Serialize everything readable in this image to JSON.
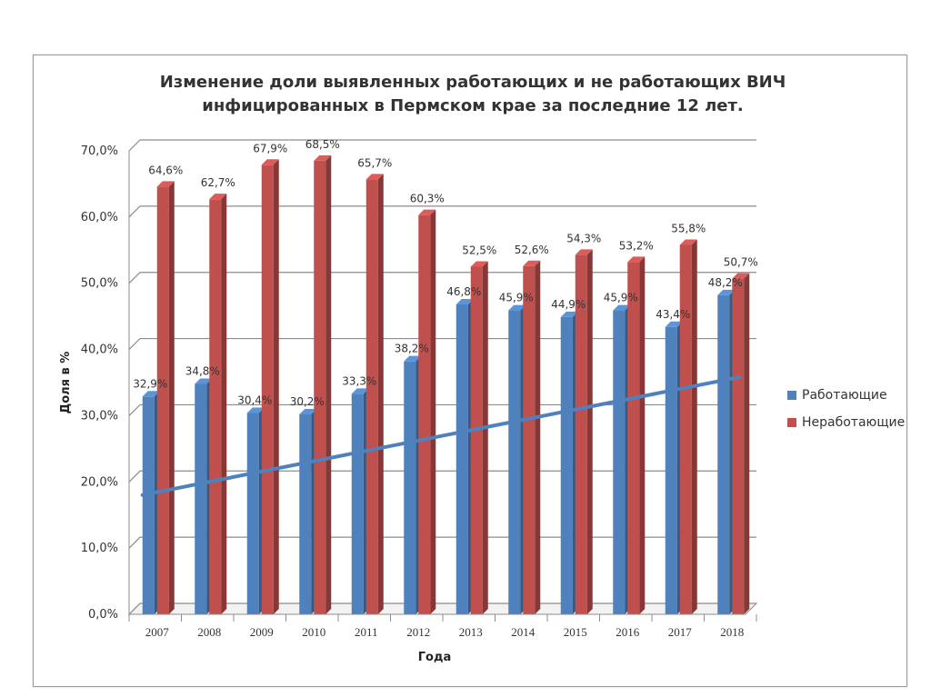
{
  "chart_data": {
    "type": "bar",
    "title": "Изменение доли выявленных работающих и не работающих ВИЧ инфицированных в Пермском крае за последние 12 лет.",
    "xlabel": "Года",
    "ylabel": "Доля в %",
    "categories": [
      "2007",
      "2008",
      "2009",
      "2010",
      "2011",
      "2012",
      "2013",
      "2014",
      "2015",
      "2016",
      "2017",
      "2018"
    ],
    "y_ticks": [
      "0,0%",
      "10,0%",
      "20,0%",
      "30,0%",
      "40,0%",
      "50,0%",
      "60,0%",
      "70,0%"
    ],
    "ylim": [
      0,
      70
    ],
    "grid": true,
    "legend_position": "right",
    "series": [
      {
        "name": "Работающие",
        "color": "#4f81bd",
        "values": [
          32.9,
          34.8,
          30.4,
          30.2,
          33.3,
          38.2,
          46.8,
          45.9,
          44.9,
          45.9,
          43.4,
          48.2
        ],
        "labels": [
          "32,9%",
          "34,8%",
          "30,4%",
          "30,2%",
          "33,3%",
          "38,2%",
          "46,8%",
          "45,9%",
          "44,9%",
          "45,9%",
          "43,4%",
          "48,2%"
        ]
      },
      {
        "name": "Неработающие",
        "color": "#c0504d",
        "values": [
          64.6,
          62.7,
          67.9,
          68.5,
          65.7,
          60.3,
          52.5,
          52.6,
          54.3,
          53.2,
          55.8,
          50.7
        ],
        "labels": [
          "64,6%",
          "62,7%",
          "67,9%",
          "68,5%",
          "65,7%",
          "60,3%",
          "52,5%",
          "52,6%",
          "54,3%",
          "53,2%",
          "55,8%",
          "50,7%"
        ]
      }
    ],
    "trendline": {
      "series": "Работающие",
      "color": "#4f81bd",
      "start": 17.2,
      "end": 35.0
    }
  }
}
